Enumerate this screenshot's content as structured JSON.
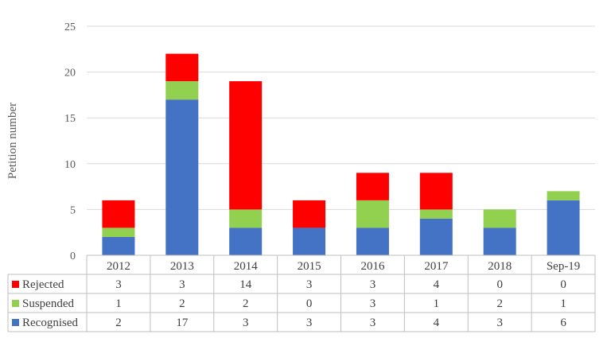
{
  "chart_data": {
    "type": "bar",
    "stacked": true,
    "title": "",
    "xlabel": "",
    "ylabel": "Petition number",
    "ylim": [
      0,
      25
    ],
    "yticks": [
      0,
      5,
      10,
      15,
      20,
      25
    ],
    "grid": true,
    "legend_placement": "data-table",
    "categories": [
      "2012",
      "2013",
      "2014",
      "2015",
      "2016",
      "2017",
      "2018",
      "Sep-19"
    ],
    "series": [
      {
        "name": "Recognised",
        "color": "#4472C4",
        "values": [
          2,
          17,
          3,
          3,
          3,
          4,
          3,
          6
        ]
      },
      {
        "name": "Suspended",
        "color": "#92D050",
        "values": [
          1,
          2,
          2,
          0,
          3,
          1,
          2,
          1
        ]
      },
      {
        "name": "Rejected",
        "color": "#FF0000",
        "values": [
          3,
          3,
          14,
          3,
          3,
          4,
          0,
          0
        ]
      }
    ],
    "table_row_order": [
      "Rejected",
      "Suspended",
      "Recognised"
    ]
  }
}
